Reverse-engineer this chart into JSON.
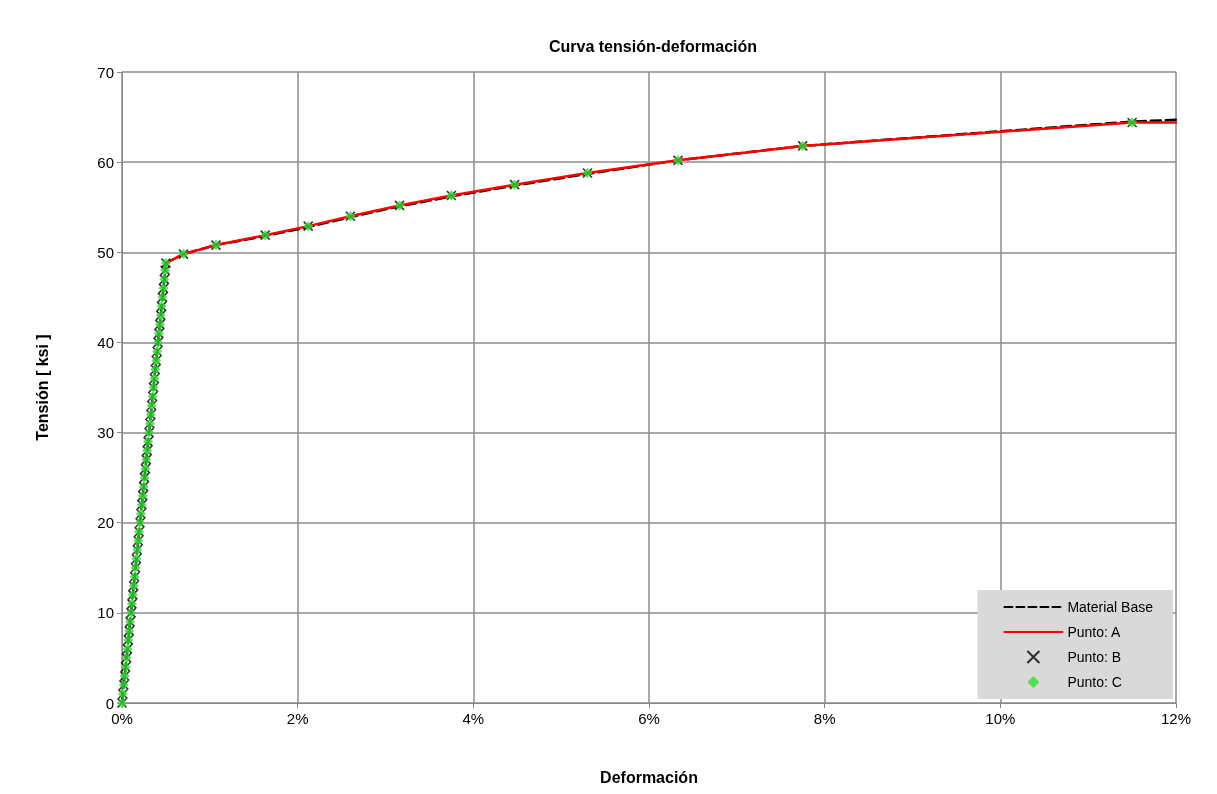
{
  "chart_data": {
    "type": "line",
    "title": "Curva tensión-deformación",
    "xlabel": "Deformación",
    "ylabel": "Tensión [ ksi ]",
    "x": [
      0,
      0.01,
      0.021,
      0.031,
      0.041,
      0.051,
      0.062,
      0.072,
      0.082,
      0.092,
      0.103,
      0.113,
      0.123,
      0.133,
      0.144,
      0.154,
      0.164,
      0.174,
      0.185,
      0.195,
      0.205,
      0.215,
      0.226,
      0.236,
      0.246,
      0.256,
      0.267,
      0.277,
      0.287,
      0.297,
      0.308,
      0.318,
      0.328,
      0.338,
      0.349,
      0.359,
      0.369,
      0.379,
      0.39,
      0.4,
      0.41,
      0.42,
      0.431,
      0.441,
      0.451,
      0.461,
      0.472,
      0.482,
      0.492,
      0.5,
      0.7,
      1.07,
      1.63,
      2.12,
      2.6,
      3.16,
      3.75,
      4.47,
      5.3,
      6.33,
      7.75,
      11.5,
      12
    ],
    "series": [
      {
        "name": "Material Base",
        "color": "#000000",
        "line_style": "dashed",
        "marker": "none",
        "values": [
          0,
          1,
          2,
          3,
          4,
          5,
          6,
          7,
          8,
          9,
          10,
          11,
          12,
          13,
          14,
          15,
          16,
          17,
          18,
          19,
          20,
          21,
          22,
          23,
          24,
          25,
          26,
          27,
          28,
          29,
          30,
          31,
          32,
          33,
          34,
          35,
          36,
          37,
          38,
          39,
          40,
          41,
          42,
          43,
          44,
          45,
          46,
          47,
          48,
          48.8,
          49.8,
          50.8,
          51.8,
          52.8,
          53.9,
          55.1,
          56.2,
          57.4,
          58.7,
          60.2,
          61.8,
          64.5,
          64.7
        ]
      },
      {
        "name": "Punto: A",
        "color": "#ff0000",
        "line_style": "solid",
        "marker": "none",
        "values": [
          null,
          null,
          null,
          null,
          null,
          null,
          null,
          null,
          null,
          null,
          null,
          null,
          null,
          null,
          null,
          null,
          null,
          null,
          null,
          null,
          null,
          null,
          null,
          null,
          null,
          null,
          null,
          null,
          null,
          null,
          null,
          null,
          null,
          null,
          null,
          null,
          null,
          null,
          null,
          null,
          null,
          null,
          null,
          null,
          null,
          null,
          null,
          null,
          null,
          48.8,
          49.8,
          50.8,
          51.9,
          52.9,
          54.0,
          55.2,
          56.3,
          57.5,
          58.8,
          60.2,
          61.8,
          64.4,
          64.4
        ]
      },
      {
        "name": "Punto: B",
        "type": "scatter",
        "color": "#000000",
        "marker": "cross",
        "values": [
          0,
          1,
          2,
          3,
          4,
          5,
          6,
          7,
          8,
          9,
          10,
          11,
          12,
          13,
          14,
          15,
          16,
          17,
          18,
          19,
          20,
          21,
          22,
          23,
          24,
          25,
          26,
          27,
          28,
          29,
          30,
          31,
          32,
          33,
          34,
          35,
          36,
          37,
          38,
          39,
          40,
          41,
          42,
          43,
          44,
          45,
          46,
          47,
          48,
          48.8,
          49.8,
          50.8,
          51.9,
          52.9,
          54.0,
          55.2,
          56.3,
          57.5,
          58.8,
          60.2,
          61.8,
          64.4,
          null
        ]
      },
      {
        "name": "Punto: C",
        "type": "scatter",
        "color": "#33dd33",
        "marker": "diamond",
        "values": [
          0,
          1,
          2,
          3,
          4,
          5,
          6,
          7,
          8,
          9,
          10,
          11,
          12,
          13,
          14,
          15,
          16,
          17,
          18,
          19,
          20,
          21,
          22,
          23,
          24,
          25,
          26,
          27,
          28,
          29,
          30,
          31,
          32,
          33,
          34,
          35,
          36,
          37,
          38,
          39,
          40,
          41,
          42,
          43,
          44,
          45,
          46,
          47,
          48,
          48.8,
          49.8,
          50.8,
          51.9,
          52.9,
          54.0,
          55.2,
          56.3,
          57.5,
          58.8,
          60.2,
          61.8,
          64.4,
          null
        ]
      }
    ],
    "xlim": [
      0,
      12
    ],
    "xticks": [
      {
        "value": 0,
        "label": "0%"
      },
      {
        "value": 2,
        "label": "2%"
      },
      {
        "value": 4,
        "label": "4%"
      },
      {
        "value": 6,
        "label": "6%"
      },
      {
        "value": 8,
        "label": "8%"
      },
      {
        "value": 10,
        "label": "10%"
      },
      {
        "value": 12,
        "label": "12%"
      }
    ],
    "ylim": [
      0,
      70
    ],
    "yticks": [
      0,
      10,
      20,
      30,
      40,
      50,
      60,
      70
    ],
    "grid": true,
    "legend": "bottom right"
  }
}
